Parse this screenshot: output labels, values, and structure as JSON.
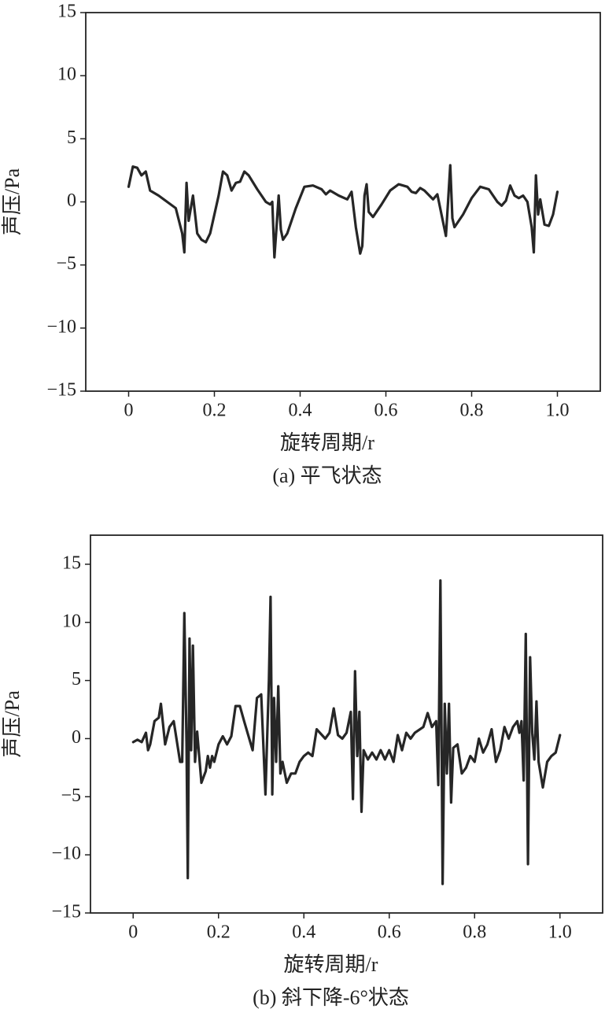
{
  "chart_data": [
    {
      "type": "line",
      "xlabel": "旋转周期/r",
      "ylabel": "声压/Pa",
      "caption": "(a) 平飞状态",
      "color": "#262626",
      "xlim": [
        -0.1,
        1.1
      ],
      "ylim": [
        -15,
        15
      ],
      "xticks": [
        0,
        0.2,
        0.4,
        0.6,
        0.8,
        {
          "value": 1,
          "label": "1.0"
        }
      ],
      "yticks": [
        {
          "value": -15,
          "label": "−15"
        },
        {
          "value": -10,
          "label": "−10"
        },
        {
          "value": -5,
          "label": "−5"
        },
        0,
        5,
        10,
        15
      ],
      "x": [
        0,
        0.01,
        0.02,
        0.03,
        0.04,
        0.05,
        0.07,
        0.09,
        0.11,
        0.125,
        0.13,
        0.135,
        0.14,
        0.15,
        0.16,
        0.17,
        0.18,
        0.19,
        0.21,
        0.22,
        0.23,
        0.24,
        0.25,
        0.26,
        0.27,
        0.28,
        0.3,
        0.32,
        0.33,
        0.335,
        0.34,
        0.345,
        0.35,
        0.355,
        0.36,
        0.37,
        0.39,
        0.41,
        0.43,
        0.45,
        0.46,
        0.47,
        0.49,
        0.51,
        0.52,
        0.53,
        0.54,
        0.545,
        0.55,
        0.555,
        0.56,
        0.57,
        0.59,
        0.61,
        0.63,
        0.65,
        0.66,
        0.67,
        0.68,
        0.69,
        0.71,
        0.72,
        0.74,
        0.745,
        0.75,
        0.755,
        0.76,
        0.78,
        0.8,
        0.82,
        0.84,
        0.86,
        0.87,
        0.88,
        0.89,
        0.9,
        0.91,
        0.92,
        0.93,
        0.94,
        0.945,
        0.95,
        0.955,
        0.96,
        0.97,
        0.98,
        0.99,
        1.0
      ],
      "values": [
        1.2,
        2.8,
        2.7,
        2.1,
        2.4,
        0.9,
        0.5,
        0,
        -0.5,
        -2.5,
        -4,
        1.5,
        -1.5,
        0.5,
        -2.5,
        -3,
        -3.2,
        -2.5,
        0.5,
        2.4,
        2.1,
        0.9,
        1.5,
        1.6,
        2.4,
        2.1,
        1,
        0,
        -0.2,
        0,
        -4.4,
        -2,
        0.5,
        -2.2,
        -3,
        -2.5,
        -0.5,
        1.2,
        1.3,
        1,
        0.6,
        0.9,
        0.5,
        0.2,
        0.8,
        -2,
        -4.1,
        -3.5,
        0.5,
        1.4,
        -0.8,
        -1.2,
        -0.2,
        0.9,
        1.4,
        1.2,
        0.8,
        0.7,
        1.1,
        0.9,
        0.2,
        0.6,
        -2.7,
        0,
        2.9,
        -1.3,
        -2,
        -1,
        0.3,
        1.2,
        1,
        0,
        -0.3,
        0.1,
        1.3,
        0.5,
        0.3,
        0.5,
        0,
        -2,
        -4,
        2.1,
        -1,
        0.2,
        -1.8,
        -1.9,
        -1,
        0.8
      ]
    },
    {
      "type": "line",
      "xlabel": "旋转周期/r",
      "ylabel": "声压/Pa",
      "caption": "(b) 斜下降-6°状态",
      "color": "#262626",
      "xlim": [
        -0.1,
        1.1
      ],
      "ylim": [
        -15,
        17.5
      ],
      "xticks": [
        0,
        0.2,
        0.4,
        0.6,
        0.8,
        {
          "value": 1,
          "label": "1.0"
        }
      ],
      "yticks": [
        {
          "value": -15,
          "label": "−15"
        },
        {
          "value": -10,
          "label": "−10"
        },
        {
          "value": -5,
          "label": "−5"
        },
        0,
        5,
        10,
        15
      ],
      "x": [
        0,
        0.01,
        0.02,
        0.03,
        0.035,
        0.04,
        0.05,
        0.06,
        0.065,
        0.075,
        0.085,
        0.095,
        0.11,
        0.115,
        0.12,
        0.125,
        0.128,
        0.132,
        0.136,
        0.14,
        0.145,
        0.15,
        0.16,
        0.17,
        0.175,
        0.18,
        0.185,
        0.19,
        0.2,
        0.21,
        0.22,
        0.23,
        0.24,
        0.25,
        0.26,
        0.28,
        0.29,
        0.3,
        0.31,
        0.318,
        0.322,
        0.326,
        0.33,
        0.335,
        0.34,
        0.345,
        0.35,
        0.36,
        0.37,
        0.38,
        0.39,
        0.4,
        0.41,
        0.42,
        0.43,
        0.45,
        0.46,
        0.47,
        0.48,
        0.49,
        0.5,
        0.51,
        0.515,
        0.52,
        0.525,
        0.53,
        0.535,
        0.54,
        0.55,
        0.56,
        0.57,
        0.58,
        0.59,
        0.6,
        0.61,
        0.62,
        0.63,
        0.64,
        0.65,
        0.66,
        0.68,
        0.69,
        0.7,
        0.71,
        0.715,
        0.72,
        0.725,
        0.73,
        0.735,
        0.74,
        0.745,
        0.75,
        0.76,
        0.77,
        0.78,
        0.79,
        0.8,
        0.81,
        0.82,
        0.83,
        0.84,
        0.85,
        0.86,
        0.87,
        0.88,
        0.89,
        0.9,
        0.905,
        0.91,
        0.915,
        0.92,
        0.925,
        0.93,
        0.935,
        0.94,
        0.945,
        0.95,
        0.96,
        0.97,
        0.98,
        0.99,
        1.0
      ],
      "values": [
        -0.3,
        -0.1,
        -0.3,
        0.5,
        -1,
        -0.5,
        1.5,
        1.8,
        3,
        -0.5,
        1,
        1.5,
        -2,
        -2,
        10.8,
        -0.5,
        -12,
        8.6,
        -1,
        8,
        -2,
        0.6,
        -3.8,
        -2.8,
        -1.5,
        -2.5,
        -1.5,
        -2,
        -0.5,
        0.2,
        -0.5,
        0.2,
        2.8,
        2.8,
        1.5,
        -1,
        3.5,
        3.8,
        -4.8,
        5,
        12.2,
        -4.8,
        3.5,
        -2,
        4.5,
        -3,
        -2,
        -3.8,
        -3,
        -3,
        -2,
        -1.5,
        -1.2,
        -1.5,
        0.8,
        0,
        0.5,
        2.6,
        0.3,
        0,
        0.5,
        2.3,
        -5.2,
        5.8,
        -1.5,
        2.3,
        -6.3,
        -1,
        -1.8,
        -1.2,
        -1.8,
        -1,
        -1.8,
        -1,
        -2,
        0.3,
        -1,
        0.5,
        0,
        0.5,
        1,
        2.2,
        1,
        1.5,
        -4,
        13.6,
        -12.5,
        3,
        -3,
        3,
        -5.5,
        -0.8,
        -0.5,
        -3,
        -2.5,
        -1.5,
        -2,
        0,
        -1.2,
        -0.5,
        0.8,
        -2,
        -1,
        1,
        0,
        1,
        1.5,
        0.5,
        1.5,
        -3.6,
        9,
        -10.8,
        7,
        0.5,
        -1.8,
        3.2,
        -2,
        -4.2,
        -2,
        -1.5,
        -1.2,
        0.3
      ]
    }
  ]
}
